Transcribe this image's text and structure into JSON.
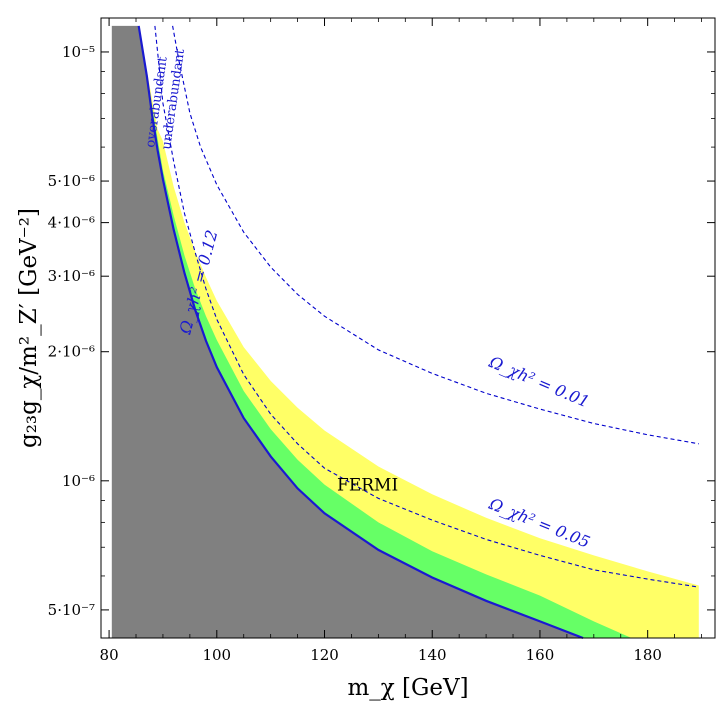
{
  "chart_data": {
    "type": "area",
    "title": "",
    "xlabel": "m_χ [GeV]",
    "ylabel": "g₂₃g_χ/m²_Z′ [GeV⁻²]",
    "x_tick_labels": [
      "80",
      "100",
      "120",
      "140",
      "160",
      "180"
    ],
    "y_tick_labels": [
      "10⁻⁵",
      "5·10⁻⁶",
      "4·10⁻⁶",
      "3·10⁻⁶",
      "2·10⁻⁶",
      "10⁻⁶",
      "5·10⁻⁷"
    ],
    "x_ticks": [
      80,
      100,
      120,
      140,
      160,
      180
    ],
    "y_ticks": [
      1e-05,
      5e-06,
      4e-06,
      3e-06,
      2e-06,
      1e-06,
      5e-07
    ],
    "xlim": [
      78.5,
      192.5
    ],
    "ylim": [
      4.3e-07,
      1.2e-05
    ],
    "y_scale": "log",
    "colors": {
      "excluded": "#808080",
      "green": "#66ff66",
      "yellow": "#ffff66",
      "relic": "#1a1ad0",
      "contour": "#0000cc"
    },
    "relic_curve": {
      "label": "Ω_χh² = 0.12",
      "x": [
        85.5,
        87,
        88,
        89,
        90,
        92,
        94,
        96,
        98,
        100,
        105,
        110,
        115,
        120,
        130,
        140,
        150,
        160,
        168
      ],
      "y": [
        1.15e-05,
        8.8e-06,
        7.1e-06,
        5.9e-06,
        5.05e-06,
        3.85e-06,
        3.05e-06,
        2.5e-06,
        2.12e-06,
        1.84e-06,
        1.4e-06,
        1.14e-06,
        9.6e-07,
        8.4e-07,
        6.9e-07,
        5.95e-07,
        5.25e-07,
        4.7e-07,
        4.3e-07
      ]
    },
    "green_band_upper": {
      "x": [
        90,
        92,
        94,
        96,
        98,
        100,
        105,
        110,
        115,
        120,
        130,
        140,
        150,
        160,
        170,
        177
      ],
      "y": [
        5.3e-06,
        4.15e-06,
        3.35e-06,
        2.8e-06,
        2.42e-06,
        2.13e-06,
        1.62e-06,
        1.32e-06,
        1.12e-06,
        9.8e-07,
        8e-07,
        6.85e-07,
        6.05e-07,
        5.4e-07,
        4.7e-07,
        4.3e-07
      ]
    },
    "yellow_band_upper": {
      "x": [
        89,
        90,
        92,
        94,
        96,
        98,
        100,
        105,
        110,
        115,
        120,
        130,
        140,
        150,
        160,
        170,
        180,
        189.5
      ],
      "y": [
        6.6e-06,
        6.2e-06,
        4.85e-06,
        4e-06,
        3.42e-06,
        2.98e-06,
        2.63e-06,
        2.05e-06,
        1.71e-06,
        1.48e-06,
        1.31e-06,
        1.08e-06,
        9.3e-07,
        8.2e-07,
        7.35e-07,
        6.7e-07,
        6.15e-07,
        5.7e-07
      ]
    },
    "contour_005": {
      "label": "Ω_χh² = 0.05",
      "x": [
        88.5,
        90,
        92,
        94,
        96,
        98,
        100,
        105,
        110,
        115,
        120,
        130,
        140,
        150,
        160,
        170,
        180,
        189.5
      ],
      "y": [
        1.15e-05,
        7.6e-06,
        5.55e-06,
        4.2e-06,
        3.4e-06,
        2.8e-06,
        2.38e-06,
        1.77e-06,
        1.43e-06,
        1.22e-06,
        1.07e-06,
        9.1e-07,
        8.1e-07,
        7.3e-07,
        6.7e-07,
        6.2e-07,
        5.9e-07,
        5.65e-07
      ]
    },
    "contour_001": {
      "label": "Ω_χh² = 0.01",
      "x": [
        91.8,
        93,
        95,
        97,
        100,
        105,
        110,
        115,
        120,
        130,
        140,
        150,
        160,
        170,
        180,
        189.5
      ],
      "y": [
        1.15e-05,
        9.5e-06,
        7.2e-06,
        6e-06,
        4.9e-06,
        3.8e-06,
        3.15e-06,
        2.72e-06,
        2.42e-06,
        2.02e-06,
        1.78e-06,
        1.6e-06,
        1.47e-06,
        1.36e-06,
        1.28e-06,
        1.22e-06
      ]
    },
    "annotations": {
      "overabundant": "overabundant",
      "underabundant": "underabundant",
      "fermi": "FERMI"
    }
  }
}
